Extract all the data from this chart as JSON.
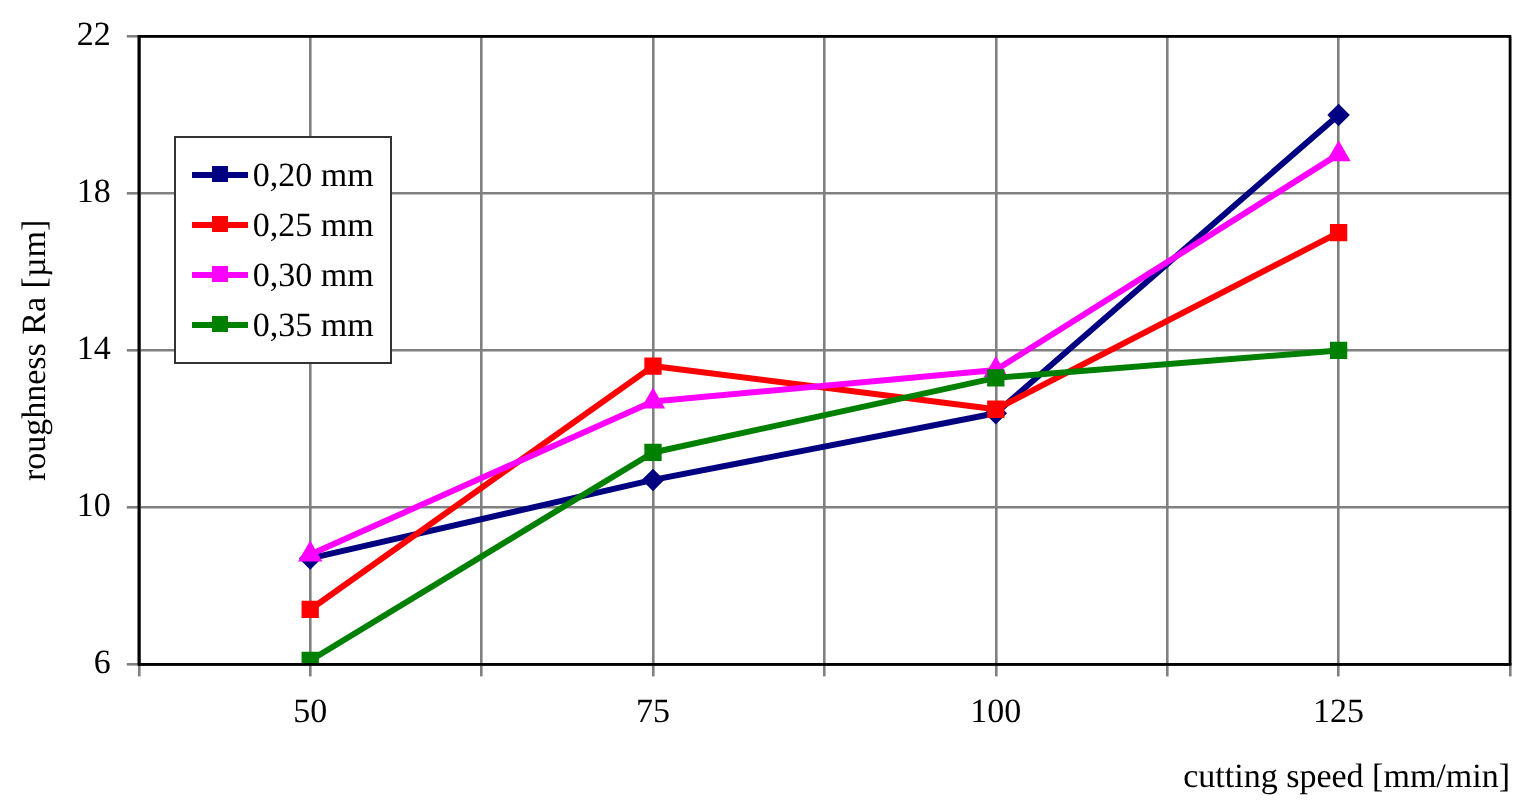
{
  "chart_data": {
    "type": "line",
    "xlabel": "cutting speed [mm/min]",
    "ylabel": "roughness Ra [µm]",
    "x": [
      50,
      75,
      100,
      125
    ],
    "xlim": [
      37.5,
      137.5
    ],
    "xticks": [
      {
        "value": 37.5,
        "label": null
      },
      50,
      {
        "value": 62.5,
        "label": null
      },
      75,
      {
        "value": 87.5,
        "label": null
      },
      100,
      {
        "value": 112.5,
        "label": null
      },
      125,
      {
        "value": 137.5,
        "label": null
      }
    ],
    "ylim": [
      6,
      22
    ],
    "yticks": [
      6,
      10,
      14,
      18,
      22
    ],
    "grid": true,
    "legend": "top left",
    "line_style": "solid",
    "series": [
      {
        "name": "0,20 mm",
        "color": "#000080",
        "marker": "diamond",
        "values": [
          8.7,
          10.7,
          12.4,
          20.0
        ]
      },
      {
        "name": "0,25 mm",
        "color": "#ff0000",
        "marker": "square",
        "values": [
          7.4,
          13.6,
          12.5,
          17.0
        ]
      },
      {
        "name": "0,30 mm",
        "color": "#ff00ff",
        "marker": "triangle",
        "values": [
          8.8,
          12.7,
          13.5,
          19.0
        ]
      },
      {
        "name": "0,35 mm",
        "color": "#008000",
        "marker": "square",
        "values": [
          6.1,
          11.4,
          13.3,
          14.0
        ]
      }
    ]
  }
}
